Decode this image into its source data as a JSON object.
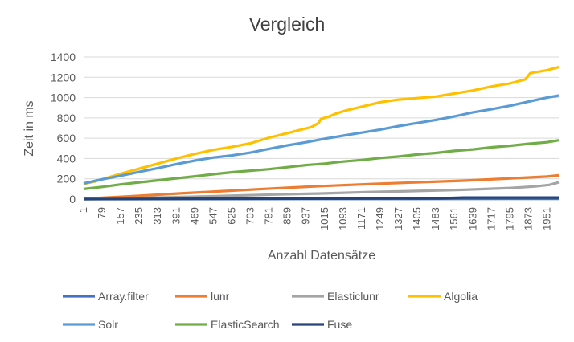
{
  "chart_data": {
    "type": "line",
    "title": "Vergleich",
    "xlabel": "Anzahl Datensätze",
    "ylabel": "Zeit in ms",
    "ylim": [
      0,
      1400
    ],
    "yticks": [
      0,
      200,
      400,
      600,
      800,
      1000,
      1200,
      1400
    ],
    "xlim": [
      1,
      2000
    ],
    "xticks": [
      1,
      79,
      157,
      235,
      313,
      391,
      469,
      547,
      625,
      703,
      781,
      859,
      937,
      1015,
      1093,
      1171,
      1249,
      1327,
      1405,
      1483,
      1561,
      1639,
      1717,
      1795,
      1873,
      1951
    ],
    "grid": true,
    "legend_position": "bottom",
    "series": [
      {
        "name": "Array.filter",
        "color": "#4472C4",
        "points": [
          [
            1,
            0
          ],
          [
            2000,
            3
          ]
        ]
      },
      {
        "name": "lunr",
        "color": "#ED7D31",
        "points": [
          [
            1,
            3
          ],
          [
            200,
            28
          ],
          [
            400,
            55
          ],
          [
            600,
            80
          ],
          [
            800,
            105
          ],
          [
            1000,
            128
          ],
          [
            1200,
            148
          ],
          [
            1400,
            165
          ],
          [
            1600,
            182
          ],
          [
            1800,
            205
          ],
          [
            1950,
            222
          ],
          [
            2000,
            235
          ]
        ]
      },
      {
        "name": "Elasticlunr",
        "color": "#A5A5A5",
        "points": [
          [
            1,
            0
          ],
          [
            200,
            10
          ],
          [
            400,
            20
          ],
          [
            600,
            32
          ],
          [
            800,
            45
          ],
          [
            1000,
            55
          ],
          [
            1200,
            70
          ],
          [
            1400,
            80
          ],
          [
            1600,
            92
          ],
          [
            1800,
            110
          ],
          [
            1900,
            125
          ],
          [
            1960,
            140
          ],
          [
            2000,
            165
          ]
        ]
      },
      {
        "name": "Algolia",
        "color": "#FFC000",
        "points": [
          [
            1,
            150
          ],
          [
            50,
            175
          ],
          [
            100,
            210
          ],
          [
            157,
            250
          ],
          [
            235,
            300
          ],
          [
            313,
            350
          ],
          [
            391,
            400
          ],
          [
            469,
            445
          ],
          [
            547,
            485
          ],
          [
            625,
            515
          ],
          [
            703,
            550
          ],
          [
            781,
            605
          ],
          [
            859,
            650
          ],
          [
            900,
            675
          ],
          [
            960,
            710
          ],
          [
            990,
            750
          ],
          [
            1000,
            790
          ],
          [
            1030,
            810
          ],
          [
            1060,
            840
          ],
          [
            1100,
            870
          ],
          [
            1171,
            910
          ],
          [
            1249,
            955
          ],
          [
            1327,
            980
          ],
          [
            1405,
            995
          ],
          [
            1483,
            1010
          ],
          [
            1561,
            1040
          ],
          [
            1639,
            1070
          ],
          [
            1717,
            1110
          ],
          [
            1795,
            1140
          ],
          [
            1860,
            1180
          ],
          [
            1880,
            1240
          ],
          [
            1951,
            1270
          ],
          [
            2000,
            1300
          ]
        ]
      },
      {
        "name": "Solr",
        "color": "#5B9BD5",
        "points": [
          [
            1,
            155
          ],
          [
            79,
            195
          ],
          [
            157,
            230
          ],
          [
            235,
            268
          ],
          [
            313,
            305
          ],
          [
            391,
            345
          ],
          [
            469,
            380
          ],
          [
            547,
            410
          ],
          [
            625,
            430
          ],
          [
            703,
            458
          ],
          [
            781,
            495
          ],
          [
            859,
            530
          ],
          [
            937,
            560
          ],
          [
            1015,
            595
          ],
          [
            1093,
            625
          ],
          [
            1171,
            655
          ],
          [
            1249,
            685
          ],
          [
            1327,
            720
          ],
          [
            1405,
            750
          ],
          [
            1483,
            780
          ],
          [
            1561,
            815
          ],
          [
            1639,
            855
          ],
          [
            1717,
            885
          ],
          [
            1795,
            920
          ],
          [
            1873,
            960
          ],
          [
            1951,
            1000
          ],
          [
            2000,
            1020
          ]
        ]
      },
      {
        "name": "ElasticSearch",
        "color": "#70AD47",
        "points": [
          [
            1,
            100
          ],
          [
            79,
            120
          ],
          [
            157,
            145
          ],
          [
            235,
            165
          ],
          [
            313,
            185
          ],
          [
            391,
            205
          ],
          [
            469,
            225
          ],
          [
            547,
            245
          ],
          [
            625,
            265
          ],
          [
            703,
            280
          ],
          [
            781,
            295
          ],
          [
            859,
            315
          ],
          [
            937,
            335
          ],
          [
            1015,
            350
          ],
          [
            1093,
            370
          ],
          [
            1171,
            385
          ],
          [
            1249,
            405
          ],
          [
            1327,
            420
          ],
          [
            1405,
            440
          ],
          [
            1483,
            455
          ],
          [
            1561,
            475
          ],
          [
            1639,
            490
          ],
          [
            1717,
            510
          ],
          [
            1795,
            525
          ],
          [
            1873,
            545
          ],
          [
            1951,
            560
          ],
          [
            2000,
            580
          ]
        ]
      },
      {
        "name": "Fuse",
        "color": "#264478",
        "points": [
          [
            1,
            0
          ],
          [
            1500,
            8
          ],
          [
            1600,
            15
          ],
          [
            2000,
            15
          ]
        ]
      }
    ]
  }
}
